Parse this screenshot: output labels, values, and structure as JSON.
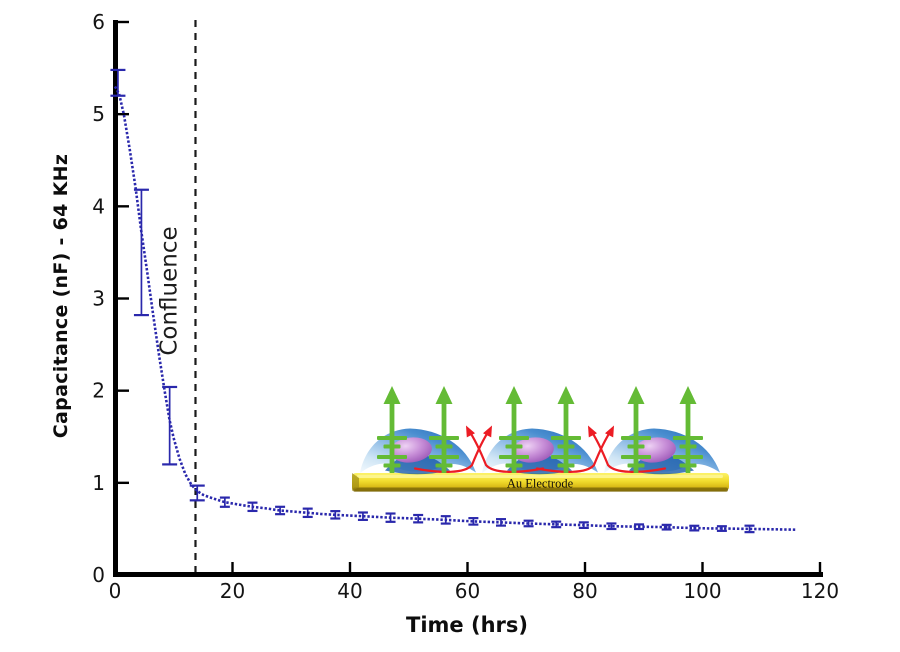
{
  "chart_data": {
    "type": "line",
    "title": "",
    "xlabel": "Time (hrs)",
    "ylabel": "Capacitance (nF) - 64 KHz",
    "xlim": [
      0,
      120
    ],
    "ylim": [
      0,
      6
    ],
    "xticks": [
      0,
      20,
      40,
      60,
      80,
      100,
      120
    ],
    "yticks": [
      0,
      1,
      2,
      3,
      4,
      5,
      6
    ],
    "grid": false,
    "legend": false,
    "annotation": {
      "label": "Confluence",
      "x_hrs": 13.7,
      "style": "dashed-vertical-line"
    },
    "series": [
      {
        "name": "Capacitance (nF) at 64 KHz",
        "color": "#2a28ac",
        "style": "dotted-line-with-error-bars",
        "points": [
          [
            0,
            5.3
          ],
          [
            0.7,
            5.22
          ],
          [
            1.5,
            5.0
          ],
          [
            2.5,
            4.62
          ],
          [
            3.5,
            4.2
          ],
          [
            4.5,
            3.72
          ],
          [
            5.5,
            3.28
          ],
          [
            6.5,
            2.82
          ],
          [
            7.5,
            2.38
          ],
          [
            8.5,
            1.98
          ],
          [
            9.3,
            1.68
          ],
          [
            10,
            1.48
          ],
          [
            11,
            1.26
          ],
          [
            12,
            1.09
          ],
          [
            13,
            0.98
          ],
          [
            14,
            0.91
          ],
          [
            15,
            0.87
          ],
          [
            16,
            0.845
          ],
          [
            17,
            0.825
          ],
          [
            18.7,
            0.79
          ],
          [
            21,
            0.765
          ],
          [
            23.4,
            0.74
          ],
          [
            26,
            0.72
          ],
          [
            28.1,
            0.7
          ],
          [
            30,
            0.69
          ],
          [
            32.8,
            0.675
          ],
          [
            35,
            0.663
          ],
          [
            37.5,
            0.653
          ],
          [
            40,
            0.645
          ],
          [
            42.2,
            0.638
          ],
          [
            44.5,
            0.63
          ],
          [
            46.9,
            0.622
          ],
          [
            49,
            0.617
          ],
          [
            51.6,
            0.611
          ],
          [
            54,
            0.604
          ],
          [
            56.3,
            0.598
          ],
          [
            58.5,
            0.59
          ],
          [
            61,
            0.582
          ],
          [
            63.5,
            0.576
          ],
          [
            65.7,
            0.571
          ],
          [
            68,
            0.565
          ],
          [
            70.4,
            0.559
          ],
          [
            72.7,
            0.554
          ],
          [
            75.1,
            0.549
          ],
          [
            77.5,
            0.545
          ],
          [
            79.8,
            0.541
          ],
          [
            82,
            0.535
          ],
          [
            84.5,
            0.529
          ],
          [
            87,
            0.526
          ],
          [
            89.2,
            0.524
          ],
          [
            91.5,
            0.522
          ],
          [
            93.9,
            0.519
          ],
          [
            96,
            0.514
          ],
          [
            98.6,
            0.509
          ],
          [
            101,
            0.506
          ],
          [
            103.3,
            0.504
          ],
          [
            105.5,
            0.502
          ],
          [
            108,
            0.5
          ],
          [
            110,
            0.498
          ],
          [
            112,
            0.496
          ],
          [
            114,
            0.494
          ],
          [
            116,
            0.492
          ]
        ]
      }
    ],
    "error_bars": [
      [
        0.5,
        5.34,
        0.14
      ],
      [
        4.5,
        3.5,
        0.68
      ],
      [
        9.3,
        1.62,
        0.42
      ],
      [
        14,
        0.89,
        0.08
      ],
      [
        18.7,
        0.79,
        0.05
      ],
      [
        23.4,
        0.74,
        0.045
      ],
      [
        28.1,
        0.7,
        0.04
      ],
      [
        32.8,
        0.675,
        0.045
      ],
      [
        37.5,
        0.653,
        0.04
      ],
      [
        42.2,
        0.638,
        0.04
      ],
      [
        46.9,
        0.622,
        0.045
      ],
      [
        51.6,
        0.611,
        0.04
      ],
      [
        56.3,
        0.598,
        0.04
      ],
      [
        61,
        0.582,
        0.035
      ],
      [
        65.7,
        0.571,
        0.035
      ],
      [
        70.4,
        0.559,
        0.03
      ],
      [
        75.1,
        0.549,
        0.03
      ],
      [
        79.8,
        0.541,
        0.03
      ],
      [
        84.5,
        0.529,
        0.03
      ],
      [
        89.2,
        0.524,
        0.025
      ],
      [
        93.9,
        0.519,
        0.025
      ],
      [
        98.6,
        0.509,
        0.025
      ],
      [
        103.3,
        0.504,
        0.025
      ],
      [
        108,
        0.5,
        0.035
      ]
    ]
  },
  "inset": {
    "description": "confluent cell monolayer on gold electrode with transcellular and paracellular current paths",
    "electrode_label": "Au Electrode",
    "cell_count": 3,
    "green_arrows_per_cell": 2,
    "red_arrow_pairs": 2,
    "colors": {
      "cell_blue_dark": "#1d67b2",
      "cell_blue_light": "#f4fafe",
      "nucleus_purple": "#9149ae",
      "electrode_gold": "#f2dd2e",
      "transcellular_arrow_green": "#64bb35",
      "paracellular_arrow_red": "#ec1c24"
    }
  },
  "colors": {
    "axis": "#000000",
    "curve": "#2a28ac",
    "confluence_line": "#1a1a1a",
    "background": "#ffffff"
  }
}
